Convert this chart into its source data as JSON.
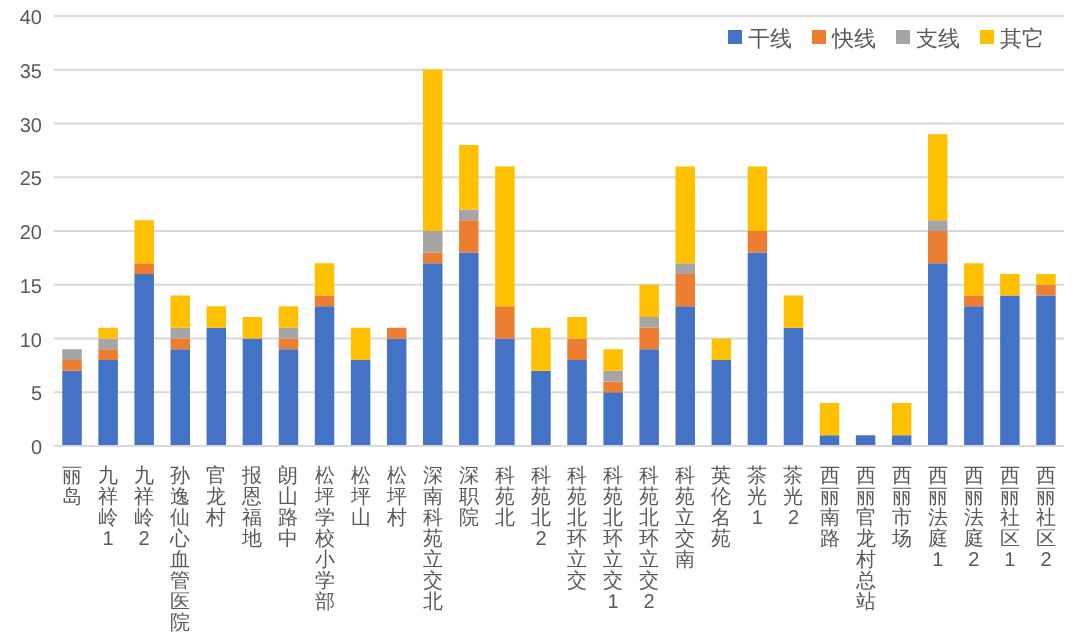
{
  "chart_data": {
    "type": "bar",
    "stacked": true,
    "categories": [
      "丽岛",
      "九祥岭1",
      "九祥岭2",
      "孙逸仙心血管医院",
      "官龙村",
      "报恩福地",
      "朗山路中",
      "松坪学校小学部",
      "松坪山",
      "松坪村",
      "深南科苑立交北",
      "深职院",
      "科苑北",
      "科苑北2",
      "科苑北环立交",
      "科苑北环立交1",
      "科苑北环立交2",
      "科苑立交南",
      "英伦名苑",
      "茶光1",
      "茶光2",
      "西丽南路",
      "西丽官龙村总站",
      "西丽市场",
      "西丽法庭1",
      "西丽法庭2",
      "西丽社区1",
      "西丽社区2"
    ],
    "series": [
      {
        "name": "干线",
        "color": "#4472c4",
        "values": [
          7,
          8,
          16,
          9,
          11,
          10,
          9,
          13,
          8,
          10,
          17,
          18,
          10,
          7,
          8,
          5,
          9,
          13,
          8,
          18,
          11,
          1,
          1,
          1,
          17,
          13,
          14,
          14
        ]
      },
      {
        "name": "快线",
        "color": "#ed7d31",
        "values": [
          1,
          1,
          1,
          1,
          0,
          0,
          1,
          1,
          0,
          1,
          1,
          3,
          3,
          0,
          2,
          1,
          2,
          3,
          0,
          2,
          0,
          0,
          0,
          0,
          3,
          1,
          0,
          1
        ]
      },
      {
        "name": "支线",
        "color": "#a5a5a5",
        "values": [
          1,
          1,
          0,
          1,
          0,
          0,
          1,
          0,
          0,
          0,
          2,
          1,
          0,
          0,
          0,
          1,
          1,
          1,
          0,
          0,
          0,
          0,
          0,
          0,
          1,
          0,
          0,
          0
        ]
      },
      {
        "name": "其它",
        "color": "#ffc000",
        "values": [
          0,
          1,
          4,
          3,
          2,
          2,
          2,
          3,
          3,
          0,
          15,
          6,
          13,
          4,
          2,
          2,
          3,
          9,
          2,
          6,
          3,
          3,
          0,
          3,
          8,
          3,
          2,
          1
        ]
      }
    ],
    "ylim": [
      0,
      40
    ],
    "yticks": [
      0,
      5,
      10,
      15,
      20,
      25,
      30,
      35,
      40
    ],
    "grid": "y",
    "legend": "top right"
  }
}
